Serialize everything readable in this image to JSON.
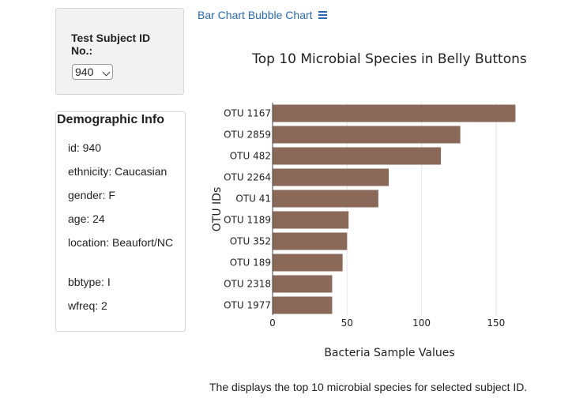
{
  "selector": {
    "label": "Test Subject ID No.:",
    "value": "940"
  },
  "nav": {
    "bar_chart": "Bar Chart",
    "bubble_chart": "Bubble Chart",
    "menu_icon": "hamburger-menu-icon"
  },
  "demographics": {
    "title": "Demographic Info",
    "items": [
      "id: 940",
      "ethnicity: Caucasian",
      "gender: F",
      "age: 24",
      "location: Beaufort/NC",
      "bbtype: I",
      "wfreq: 2"
    ]
  },
  "chart_data": {
    "type": "bar",
    "orientation": "horizontal",
    "title": "Top 10 Microbial Species in Belly Buttons",
    "xlabel": "Bacteria Sample Values",
    "ylabel": "OTU IDs",
    "categories": [
      "OTU 1167",
      "OTU 2859",
      "OTU 482",
      "OTU 2264",
      "OTU 41",
      "OTU 1189",
      "OTU 352",
      "OTU 189",
      "OTU 2318",
      "OTU 1977"
    ],
    "values": [
      163,
      126,
      113,
      78,
      71,
      51,
      50,
      47,
      40,
      40
    ],
    "xlim": [
      0,
      175
    ],
    "xticks": [
      0,
      50,
      100,
      150
    ],
    "grid": true,
    "bar_color": "#8b6958"
  },
  "footer": {
    "caption": "The displays the top 10 microbial species for selected subject ID."
  }
}
